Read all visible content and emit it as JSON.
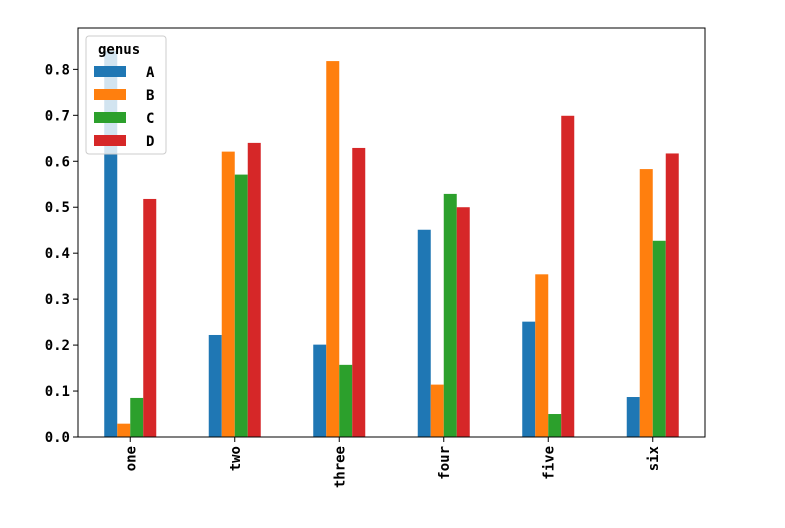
{
  "chart_data": {
    "type": "bar",
    "categories": [
      "one",
      "two",
      "three",
      "four",
      "five",
      "six"
    ],
    "series": [
      {
        "name": "A",
        "color": "#1f77b4",
        "values": [
          0.84,
          0.222,
          0.201,
          0.451,
          0.251,
          0.087
        ]
      },
      {
        "name": "B",
        "color": "#ff7f0e",
        "values": [
          0.029,
          0.621,
          0.818,
          0.114,
          0.354,
          0.583
        ]
      },
      {
        "name": "C",
        "color": "#2ca02c",
        "values": [
          0.085,
          0.571,
          0.157,
          0.529,
          0.05,
          0.427
        ]
      },
      {
        "name": "D",
        "color": "#d62728",
        "values": [
          0.518,
          0.64,
          0.629,
          0.5,
          0.699,
          0.617
        ]
      }
    ],
    "title": "",
    "xlabel": "",
    "ylabel": "",
    "ylim": [
      0.0,
      0.89
    ],
    "yticks": [
      "0.0",
      "0.1",
      "0.2",
      "0.3",
      "0.4",
      "0.5",
      "0.6",
      "0.7",
      "0.8"
    ],
    "legend": {
      "title": "genus",
      "placement": "top-left"
    },
    "grid": false
  }
}
